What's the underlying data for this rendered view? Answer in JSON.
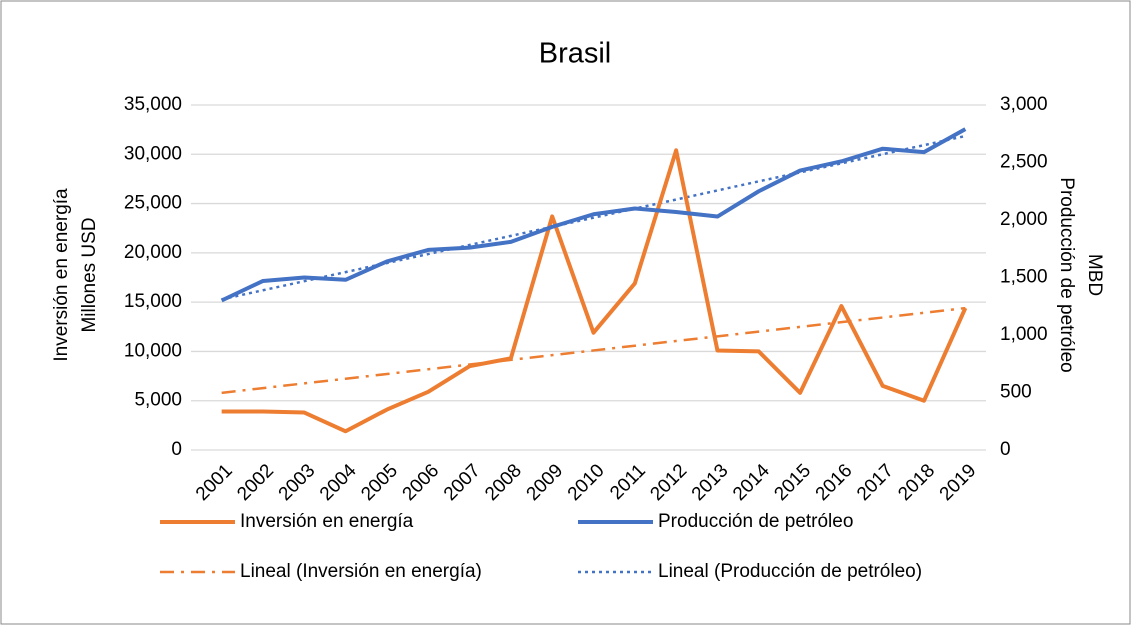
{
  "chart_data": {
    "type": "line",
    "title": "Brasil",
    "y_label": [
      "Inversión en energía",
      "Millones USD"
    ],
    "y2_label": [
      "Producción de petróleo",
      "MBD"
    ],
    "categories": [
      "2001",
      "2002",
      "2003",
      "2004",
      "2005",
      "2006",
      "2007",
      "2008",
      "2009",
      "2010",
      "2011",
      "2012",
      "2013",
      "2014",
      "2015",
      "2016",
      "2017",
      "2018",
      "2019"
    ],
    "series": [
      {
        "name": "Inversión en energía",
        "color": "#ed7d31",
        "style": "solid",
        "axis": "y",
        "values": [
          3900,
          3900,
          3800,
          1900,
          4100,
          5900,
          8500,
          9300,
          23700,
          11900,
          16900,
          30400,
          10100,
          10000,
          5800,
          14600,
          6500,
          5000,
          14400
        ]
      },
      {
        "name": "Producción de petróleo",
        "color": "#4472c4",
        "style": "solid",
        "axis": "y2",
        "values": [
          1300,
          1470,
          1500,
          1480,
          1640,
          1740,
          1760,
          1810,
          1940,
          2050,
          2100,
          2070,
          2030,
          2250,
          2430,
          2510,
          2620,
          2590,
          2790
        ]
      },
      {
        "name": "Lineal (Inversión en energía)",
        "color": "#ed7d31",
        "style": "dashdot",
        "axis": "y",
        "values": [
          5800,
          6280,
          6760,
          7230,
          7710,
          8190,
          8670,
          9140,
          9620,
          10100,
          10580,
          11060,
          11530,
          12010,
          12490,
          12970,
          13440,
          13920,
          14400
        ]
      },
      {
        "name": "Lineal (Producción de petróleo)",
        "color": "#4472c4",
        "style": "dotted",
        "axis": "y2",
        "values": [
          1310,
          1389,
          1468,
          1547,
          1626,
          1704,
          1783,
          1862,
          1941,
          2020,
          2099,
          2178,
          2257,
          2336,
          2414,
          2493,
          2572,
          2651,
          2730
        ]
      }
    ],
    "ylim": [
      0,
      35000
    ],
    "yticks": [
      0,
      {
        "value": 5000,
        "label": "5,000"
      },
      {
        "value": 10000,
        "label": "10,000"
      },
      {
        "value": 15000,
        "label": "15,000"
      },
      {
        "value": 20000,
        "label": "20,000"
      },
      {
        "value": 25000,
        "label": "25,000"
      },
      {
        "value": 30000,
        "label": "30,000"
      },
      {
        "value": 35000,
        "label": "35,000"
      }
    ],
    "y2lim": [
      0,
      3000
    ],
    "y2ticks": [
      0,
      500,
      {
        "value": 1000,
        "label": "1,000"
      },
      {
        "value": 1500,
        "label": "1,500"
      },
      {
        "value": 2000,
        "label": "2,000"
      },
      {
        "value": 2500,
        "label": "2,500"
      },
      {
        "value": 3000,
        "label": "3,000"
      }
    ],
    "grid": true,
    "legend": "bottom"
  }
}
